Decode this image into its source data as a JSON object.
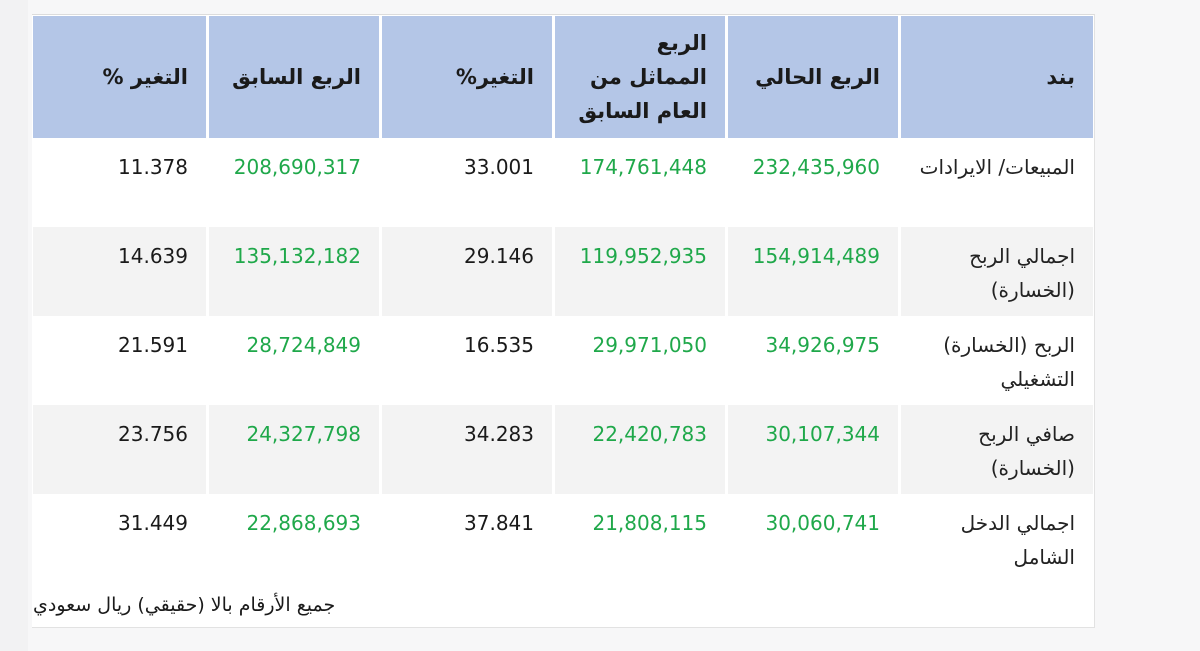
{
  "table": {
    "headers": [
      "بند",
      "الربع الحالي",
      "الربع المماثل من العام السابق",
      "التغير%",
      "الربع السابق",
      "التغير %"
    ],
    "rows": [
      {
        "item": "المبيعات/ الايرادات",
        "current": "232,435,960",
        "same_last_year": "174,761,448",
        "change_yoy": "33.001",
        "previous": "208,690,317",
        "change_qoq": "11.378"
      },
      {
        "item": "اجمالي الربح (الخسارة)",
        "current": "154,914,489",
        "same_last_year": "119,952,935",
        "change_yoy": "29.146",
        "previous": "135,132,182",
        "change_qoq": "14.639"
      },
      {
        "item": "الربح (الخسارة) التشغيلي",
        "current": "34,926,975",
        "same_last_year": "29,971,050",
        "change_yoy": "16.535",
        "previous": "28,724,849",
        "change_qoq": "21.591"
      },
      {
        "item": "صافي الربح (الخسارة)",
        "current": "30,107,344",
        "same_last_year": "22,420,783",
        "change_yoy": "34.283",
        "previous": "24,327,798",
        "change_qoq": "23.756"
      },
      {
        "item": "اجمالي الدخل الشامل",
        "current": "30,060,741",
        "same_last_year": "21,808,115",
        "change_yoy": "37.841",
        "previous": "22,868,693",
        "change_qoq": "31.449"
      }
    ]
  },
  "footnote": "جميع الأرقام بالا (حقيقي) ريال سعودي",
  "colors": {
    "header_bg": "#b4c6e7",
    "value_green": "#1fa84a",
    "alt_row_bg": "#f3f3f3"
  }
}
